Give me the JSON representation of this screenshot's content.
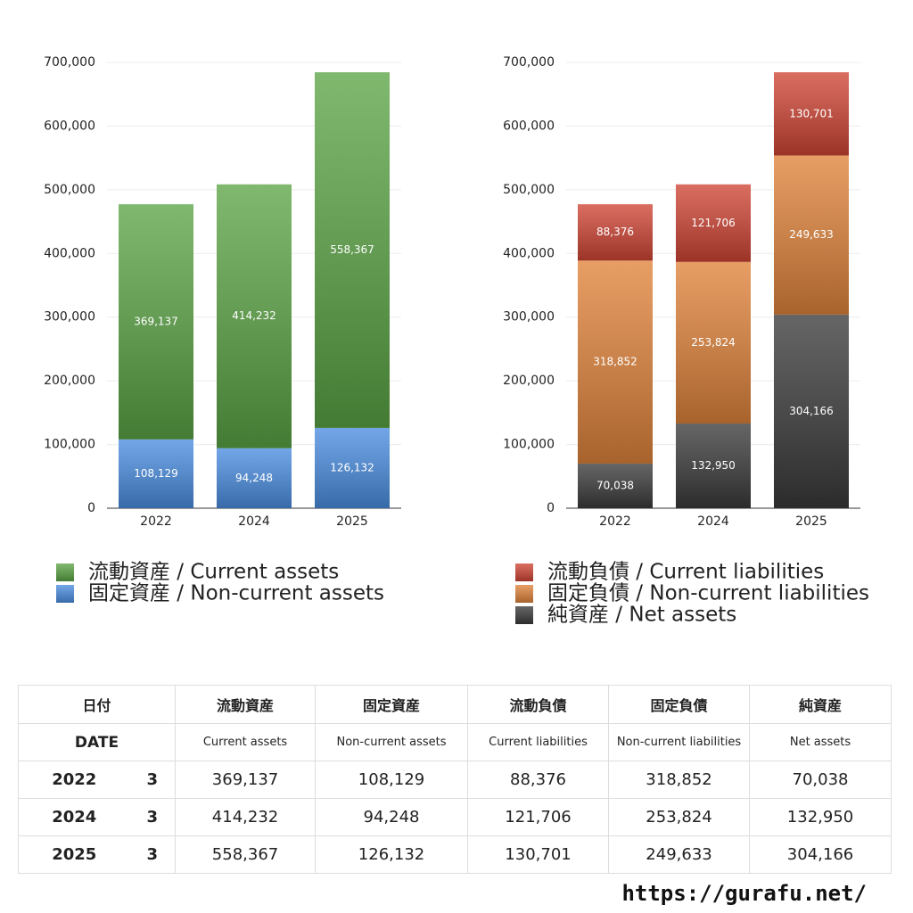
{
  "chart_data": [
    {
      "type": "bar",
      "stacked": true,
      "grid": true,
      "categories": [
        "2022",
        "2024",
        "2025"
      ],
      "ylim": [
        0,
        700000
      ],
      "yticks": [
        0,
        {
          "value": 100000,
          "label": "100,000"
        },
        {
          "value": 200000,
          "label": "200,000"
        },
        {
          "value": 300000,
          "label": "300,000"
        },
        {
          "value": 400000,
          "label": "400,000"
        },
        {
          "value": 500000,
          "label": "500,000"
        },
        {
          "value": 600000,
          "label": "600,000"
        },
        {
          "value": 700000,
          "label": "700,000"
        }
      ],
      "series": [
        {
          "name": "流動資産 / Current assets",
          "color": "#5ba445",
          "values": [
            369137,
            414232,
            558367
          ],
          "value_labels": [
            "369,137",
            "414,232",
            "558,367"
          ]
        },
        {
          "name": "固定資産 / Non-current assets",
          "color": "#4a8de0",
          "values": [
            108129,
            94248,
            126132
          ],
          "value_labels": [
            "108,129",
            "94,248",
            "126,132"
          ]
        }
      ]
    },
    {
      "type": "bar",
      "stacked": true,
      "grid": true,
      "categories": [
        "2022",
        "2024",
        "2025"
      ],
      "ylim": [
        0,
        700000
      ],
      "yticks": [
        0,
        {
          "value": 100000,
          "label": "100,000"
        },
        {
          "value": 200000,
          "label": "200,000"
        },
        {
          "value": 300000,
          "label": "300,000"
        },
        {
          "value": 400000,
          "label": "400,000"
        },
        {
          "value": 500000,
          "label": "500,000"
        },
        {
          "value": 600000,
          "label": "600,000"
        },
        {
          "value": 700000,
          "label": "700,000"
        }
      ],
      "series": [
        {
          "name": "流動負債 / Current liabilities",
          "color": "#cf4434",
          "values": [
            88376,
            121706,
            130701
          ],
          "value_labels": [
            "88,376",
            "121,706",
            "130,701"
          ]
        },
        {
          "name": "固定負債 / Non-current liabilities",
          "color": "#e0833a",
          "values": [
            318852,
            253824,
            249633
          ],
          "value_labels": [
            "318,852",
            "253,824",
            "249,633"
          ]
        },
        {
          "name": "純資産 / Net assets",
          "color": "#3a3a3a",
          "values": [
            70038,
            132950,
            304166
          ],
          "value_labels": [
            "70,038",
            "132,950",
            "304,166"
          ]
        }
      ]
    }
  ],
  "table": {
    "header": [
      "日付",
      "流動資産",
      "固定資産",
      "流動負債",
      "固定負債",
      "純資産"
    ],
    "subheader": [
      "DATE",
      "Current assets",
      "Non-current assets",
      "Current liabilities",
      "Non-current liabilities",
      "Net assets"
    ],
    "rows": [
      [
        "2022",
        "3",
        "369,137",
        "108,129",
        "88,376",
        "318,852",
        "70,038"
      ],
      [
        "2024",
        "3",
        "414,232",
        "94,248",
        "121,706",
        "253,824",
        "132,950"
      ],
      [
        "2025",
        "3",
        "558,367",
        "126,132",
        "130,701",
        "249,633",
        "304,166"
      ]
    ]
  },
  "footer": "https://gurafu.net/"
}
